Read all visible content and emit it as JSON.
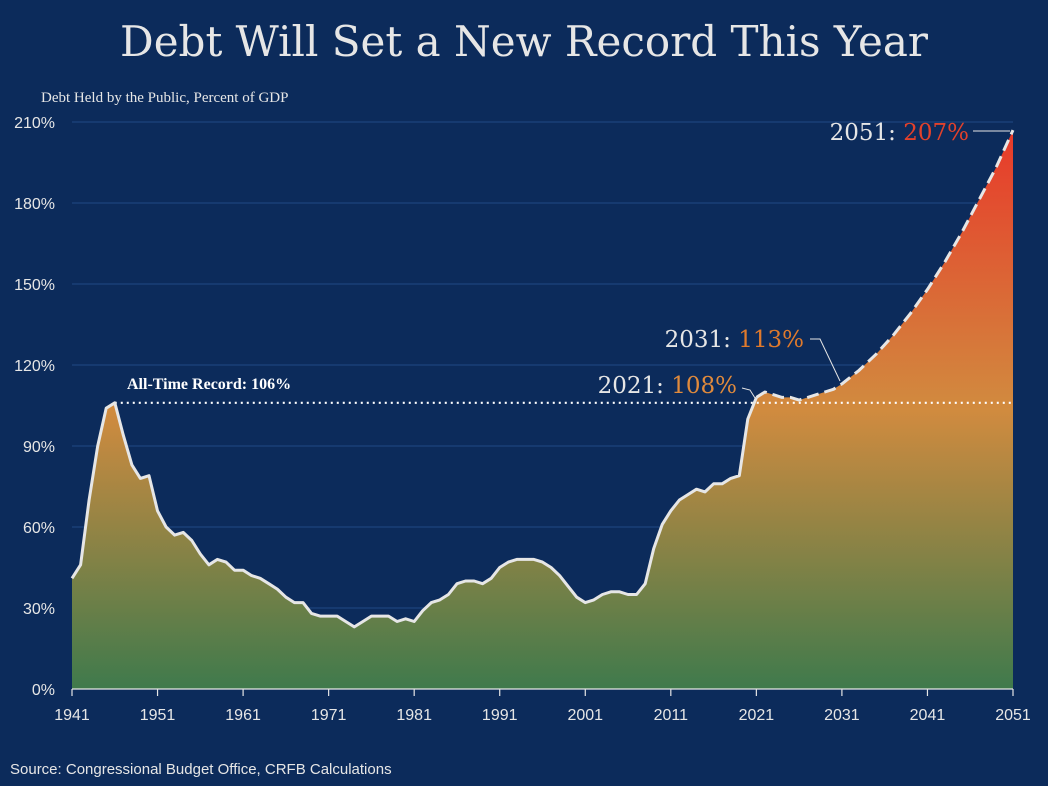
{
  "chart_data": {
    "type": "area",
    "title": "Debt Will Set a New Record This Year",
    "subtitle": "Debt Held by the Public, Percent of GDP",
    "source": "Source: Congressional Budget Office, CRFB Calculations",
    "xlim": [
      1941,
      2051
    ],
    "ylim": [
      0,
      210
    ],
    "x_ticks": [
      "1941",
      "1951",
      "1961",
      "1971",
      "1981",
      "1991",
      "2001",
      "2011",
      "2021",
      "2031",
      "2041",
      "2051"
    ],
    "y_ticks": [
      "0%",
      "30%",
      "60%",
      "90%",
      "120%",
      "150%",
      "180%",
      "210%"
    ],
    "grid": true,
    "historical": {
      "x": [
        1941,
        1942,
        1943,
        1944,
        1945,
        1946,
        1947,
        1948,
        1949,
        1950,
        1951,
        1952,
        1953,
        1954,
        1955,
        1956,
        1957,
        1958,
        1959,
        1960,
        1961,
        1962,
        1963,
        1964,
        1965,
        1966,
        1967,
        1968,
        1969,
        1970,
        1971,
        1972,
        1973,
        1974,
        1975,
        1976,
        1977,
        1978,
        1979,
        1980,
        1981,
        1982,
        1983,
        1984,
        1985,
        1986,
        1987,
        1988,
        1989,
        1990,
        1991,
        1992,
        1993,
        1994,
        1995,
        1996,
        1997,
        1998,
        1999,
        2000,
        2001,
        2002,
        2003,
        2004,
        2005,
        2006,
        2007,
        2008,
        2009,
        2010,
        2011,
        2012,
        2013,
        2014,
        2015,
        2016,
        2017,
        2018,
        2019,
        2020,
        2021
      ],
      "y": [
        41,
        46,
        70,
        90,
        104,
        106,
        94,
        83,
        78,
        79,
        66,
        60,
        57,
        58,
        55,
        50,
        46,
        48,
        47,
        44,
        44,
        42,
        41,
        39,
        37,
        34,
        32,
        32,
        28,
        27,
        27,
        27,
        25,
        23,
        25,
        27,
        27,
        27,
        25,
        26,
        25,
        29,
        32,
        33,
        35,
        39,
        40,
        40,
        39,
        41,
        45,
        47,
        48,
        48,
        48,
        47,
        45,
        42,
        38,
        34,
        32,
        33,
        35,
        36,
        36,
        35,
        35,
        39,
        52,
        61,
        66,
        70,
        72,
        74,
        73,
        76,
        76,
        78,
        79,
        100,
        108
      ]
    },
    "projection": {
      "x": [
        2021,
        2022,
        2023,
        2024,
        2025,
        2026,
        2027,
        2028,
        2029,
        2030,
        2031,
        2033,
        2035,
        2037,
        2039,
        2041,
        2043,
        2045,
        2047,
        2049,
        2051
      ],
      "y": [
        108,
        110,
        109,
        108,
        108,
        107,
        108,
        109,
        110,
        111,
        113,
        118,
        124,
        131,
        139,
        148,
        158,
        169,
        181,
        193,
        207
      ]
    },
    "record_line": {
      "value": 106,
      "label": "All-Time Record: 106%"
    },
    "annotations": [
      {
        "year_label": "2021: ",
        "value_label": "108%",
        "color": "#e08a3c"
      },
      {
        "year_label": "2031: ",
        "value_label": "113%",
        "color": "#e07a2c"
      },
      {
        "year_label": "2051: ",
        "value_label": "207%",
        "color": "#e2412b"
      }
    ],
    "gradient_colors": {
      "bottom": "#3f7a4c",
      "mid": "#d18b3f",
      "top": "#e8392a"
    },
    "line_color": "#e6e6e6",
    "background": "#0c2b5b"
  }
}
